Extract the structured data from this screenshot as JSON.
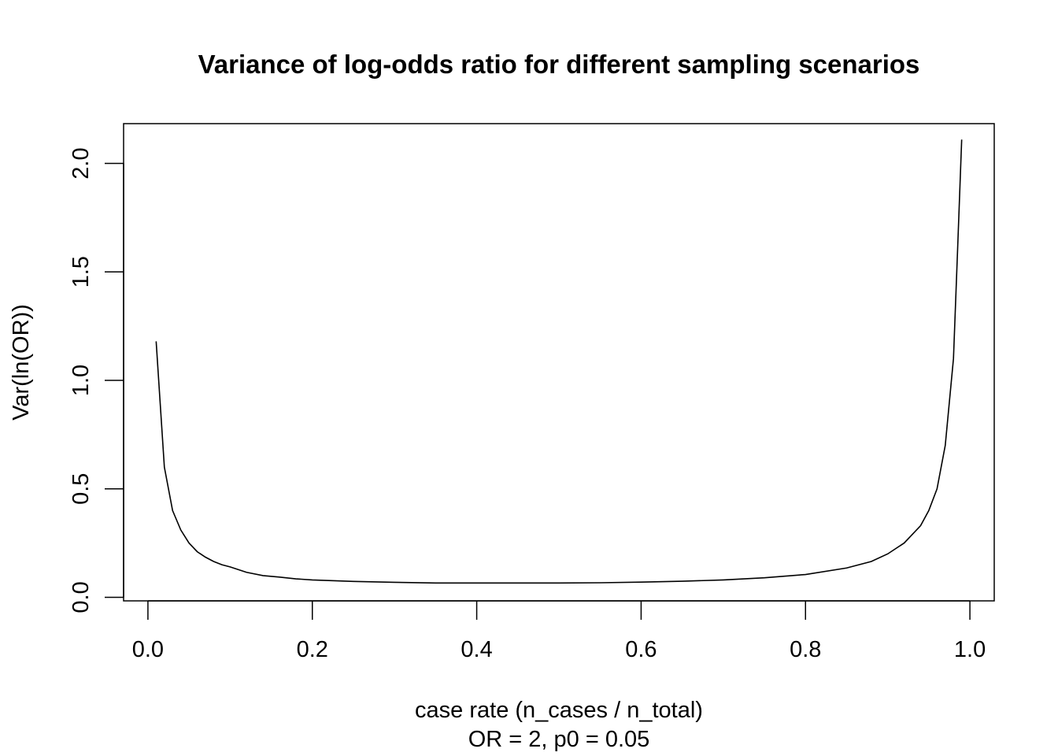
{
  "chart_data": {
    "type": "line",
    "title": "Variance of log-odds ratio for different sampling scenarios",
    "xlabel": "case rate (n_cases / n_total)",
    "subtitle": "OR = 2, p0 = 0.05",
    "ylabel": "Var(ln(OR))",
    "xlim": [
      -0.0296,
      1.0296
    ],
    "ylim": [
      -0.0165,
      2.1835
    ],
    "x_ticks": [
      0.0,
      0.2,
      0.4,
      0.6,
      0.8,
      1.0
    ],
    "x_tick_labels": [
      "0.0",
      "0.2",
      "0.4",
      "0.6",
      "0.8",
      "1.0"
    ],
    "y_ticks": [
      0.0,
      0.5,
      1.0,
      1.5,
      2.0
    ],
    "y_tick_labels": [
      "0.0",
      "0.5",
      "1.0",
      "1.5",
      "2.0"
    ],
    "grid": false,
    "legend": "none",
    "line_color": "#000000",
    "series": [
      {
        "x": [
          0.01,
          0.02,
          0.03,
          0.04,
          0.05,
          0.06,
          0.07,
          0.08,
          0.09,
          0.1,
          0.12,
          0.14,
          0.16,
          0.18,
          0.2,
          0.25,
          0.3,
          0.35,
          0.4,
          0.45,
          0.5,
          0.55,
          0.6,
          0.65,
          0.7,
          0.75,
          0.8,
          0.85,
          0.88,
          0.9,
          0.92,
          0.94,
          0.95,
          0.96,
          0.97,
          0.98,
          0.985,
          0.99
        ],
        "y": [
          1.18,
          0.6,
          0.4,
          0.31,
          0.25,
          0.21,
          0.185,
          0.165,
          0.15,
          0.14,
          0.115,
          0.1,
          0.093,
          0.085,
          0.08,
          0.073,
          0.069,
          0.066,
          0.066,
          0.066,
          0.066,
          0.067,
          0.07,
          0.074,
          0.08,
          0.09,
          0.105,
          0.135,
          0.165,
          0.2,
          0.25,
          0.33,
          0.4,
          0.5,
          0.7,
          1.1,
          1.6,
          2.11
        ]
      }
    ]
  }
}
